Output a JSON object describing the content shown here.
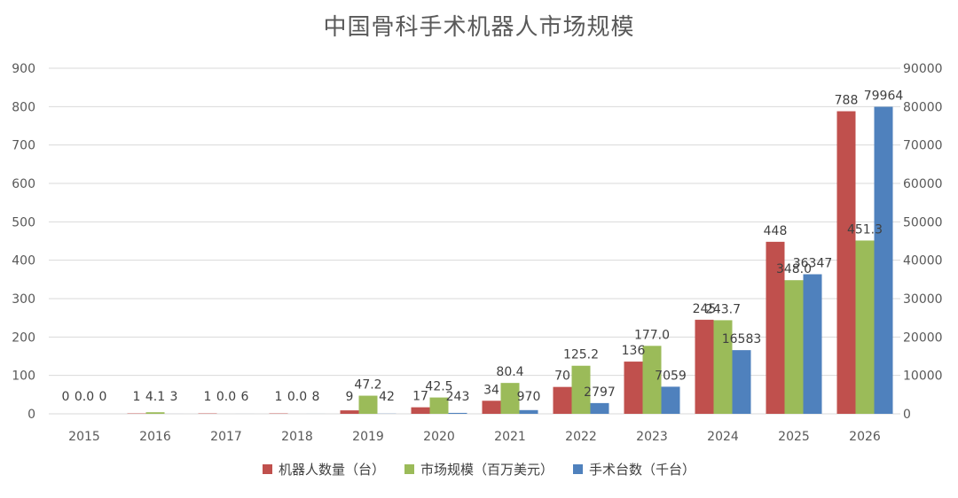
{
  "chart_data": {
    "type": "bar",
    "title": "中国骨科手术机器人市场规模",
    "categories": [
      "2015",
      "2016",
      "2017",
      "2018",
      "2019",
      "2020",
      "2021",
      "2022",
      "2023",
      "2024",
      "2025",
      "2026"
    ],
    "series": [
      {
        "name": "机器人数量（台）",
        "axis": "left",
        "color": "#c0504d",
        "values": [
          0,
          1,
          1,
          1,
          9,
          17,
          34,
          70,
          136,
          245,
          448,
          788
        ],
        "labels": [
          "0",
          "1",
          "1",
          "1",
          "9",
          "17",
          "34",
          "70",
          "136",
          "245",
          "448",
          "788"
        ]
      },
      {
        "name": "市场规模（百万美元）",
        "axis": "left",
        "color": "#9bbb59",
        "values": [
          0.0,
          4.1,
          0.0,
          0.0,
          47.2,
          42.5,
          80.4,
          125.2,
          177.0,
          243.7,
          348.0,
          451.3
        ],
        "labels": [
          "0.0",
          "4.1",
          "0.0",
          "0.0",
          "47.2",
          "42.5",
          "80.4",
          "125.2",
          "177.0",
          "243.7",
          "348.0",
          "451.3"
        ]
      },
      {
        "name": "手术台数（千台）",
        "axis": "right",
        "color": "#4f81bd",
        "values": [
          0,
          3,
          6,
          8,
          42,
          243,
          970,
          2797,
          7059,
          16583,
          36347,
          79964
        ],
        "labels": [
          "0",
          "3",
          "6",
          "8",
          "42",
          "243",
          "970",
          "2797",
          "7059",
          "16583",
          "36347",
          "79964"
        ]
      }
    ],
    "y_left": {
      "min": 0,
      "max": 900,
      "ticks": [
        "0",
        "100",
        "200",
        "300",
        "400",
        "500",
        "600",
        "700",
        "800",
        "900"
      ]
    },
    "y_right": {
      "min": 0,
      "max": 90000,
      "ticks": [
        "0",
        "10000",
        "20000",
        "30000",
        "40000",
        "50000",
        "60000",
        "70000",
        "80000",
        "90000"
      ]
    },
    "grid": true,
    "legend_position": "bottom"
  }
}
